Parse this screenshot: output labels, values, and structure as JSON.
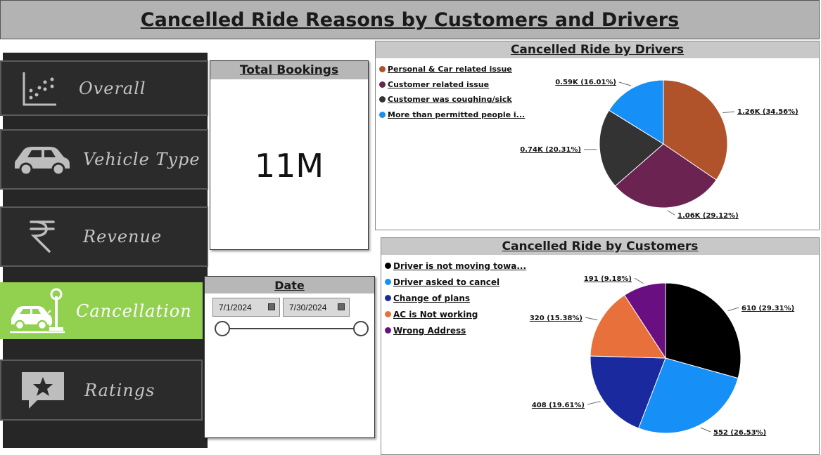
{
  "header": {
    "title": "Cancelled Ride Reasons by Customers and Drivers"
  },
  "nav": {
    "items": [
      {
        "label": "Overall",
        "icon": "scatter-chart-icon"
      },
      {
        "label": "Vehicle Type",
        "icon": "car-icon"
      },
      {
        "label": "Revenue",
        "icon": "rupee-icon"
      },
      {
        "label": "Cancellation",
        "icon": "car-crash-icon",
        "active": true
      },
      {
        "label": "Ratings",
        "icon": "star-chat-icon"
      }
    ]
  },
  "kpi": {
    "title": "Total Bookings",
    "value": "11M"
  },
  "date_slicer": {
    "title": "Date",
    "start": "7/1/2024",
    "end": "7/30/2024"
  },
  "drivers_panel": {
    "title": "Cancelled Ride by Drivers"
  },
  "customers_panel": {
    "title": "Cancelled Ride by Customers"
  },
  "colors": {
    "brown": "#b0522a",
    "plum": "#6b2352",
    "charcoal": "#333333",
    "sky": "#168ff7",
    "black": "#000000",
    "navy": "#1a2a9e",
    "orange": "#e8703a",
    "purple": "#6a0f82",
    "active_nav": "#92d050"
  },
  "chart_data": [
    {
      "type": "pie",
      "title": "Cancelled Ride by Drivers",
      "legend_position": "top-left",
      "series": [
        {
          "name": "Personal & Car related issue",
          "value": 1.26,
          "unit": "K",
          "label": "1.26K (34.56%)",
          "color": "#b0522a"
        },
        {
          "name": "Customer related issue",
          "value": 1.06,
          "unit": "K",
          "label": "1.06K (29.12%)",
          "color": "#6b2352"
        },
        {
          "name": "Customer was coughing/sick",
          "value": 0.74,
          "unit": "K",
          "label": "0.74K (20.31%)",
          "color": "#333333"
        },
        {
          "name": "More than permitted people i...",
          "value": 0.59,
          "unit": "K",
          "label": "0.59K (16.01%)",
          "color": "#168ff7"
        }
      ]
    },
    {
      "type": "pie",
      "title": "Cancelled Ride by Customers",
      "legend_position": "top-left",
      "series": [
        {
          "name": "Driver is not moving towa...",
          "value": 610,
          "label": "610 (29.31%)",
          "color": "#000000"
        },
        {
          "name": "Driver asked to cancel",
          "value": 552,
          "label": "552 (26.53%)",
          "color": "#168ff7"
        },
        {
          "name": "Change of plans",
          "value": 408,
          "label": "408 (19.61%)",
          "color": "#1a2a9e"
        },
        {
          "name": "AC is Not working",
          "value": 320,
          "label": "320 (15.38%)",
          "color": "#e8703a"
        },
        {
          "name": "Wrong Address",
          "value": 191,
          "label": "191 (9.18%)",
          "color": "#6a0f82"
        }
      ]
    }
  ]
}
